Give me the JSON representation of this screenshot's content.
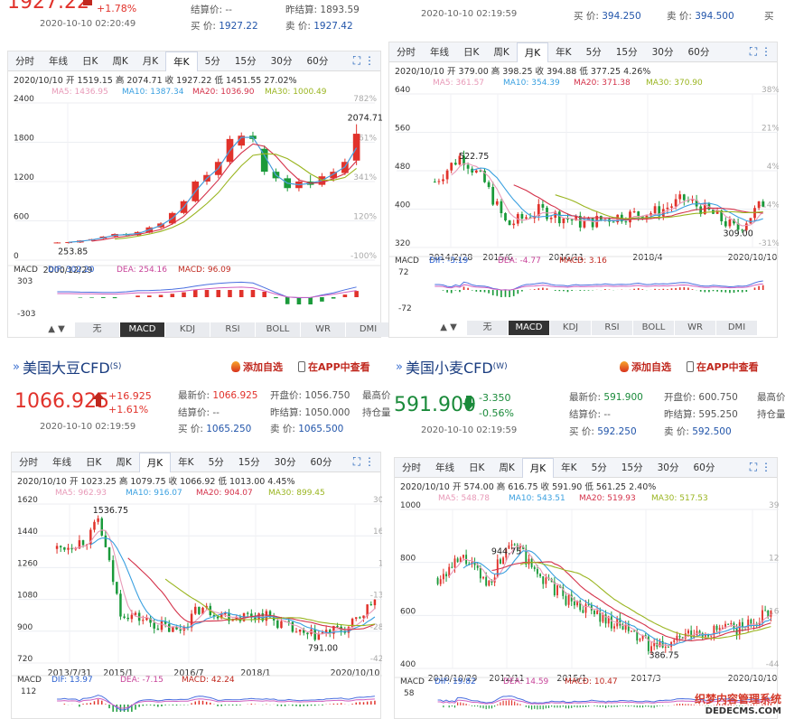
{
  "q1": {
    "price_partial": "1927.22",
    "change_pct": "+1.78%",
    "time": "2020-10-10 02:20:49",
    "settle_label": "结算价:",
    "settle_val": "--",
    "prev_settle_label": "昨结算:",
    "prev_settle_val": "1893.59",
    "buy_label": "买  价:",
    "buy_val": "1927.22",
    "sell_label": "卖  价:",
    "sell_val": "1927.42"
  },
  "q2": {
    "time": "2020-10-10 02:19:59",
    "buy_label": "买  价:",
    "buy_val": "394.250",
    "sell_label": "卖  价:",
    "sell_val": "394.500",
    "extra": "买"
  },
  "q3": {
    "title": "美国大豆CFD",
    "title_sub": "(S)",
    "add_fav": "添加自选",
    "app_view": "在APP中查看",
    "price": "1066.925",
    "change": "+16.925",
    "change_pct": "+1.61%",
    "time": "2020-10-10 02:19:59",
    "latest_label": "最新价:",
    "latest_val": "1066.925",
    "open_label": "开盘价:",
    "open_val": "1056.750",
    "high_label": "最高价",
    "settle_label": "结算价:",
    "settle_val": "--",
    "prev_settle_label": "昨结算:",
    "prev_settle_val": "1050.000",
    "hold_label": "持仓量",
    "buy_label": "买  价:",
    "buy_val": "1065.250",
    "sell_label": "卖  价:",
    "sell_val": "1065.500"
  },
  "q4": {
    "title": "美国小麦CFD",
    "title_sub": "(W)",
    "add_fav": "添加自选",
    "app_view": "在APP中查看",
    "price": "591.900",
    "change": "-3.350",
    "change_pct": "-0.56%",
    "time": "2020-10-10 02:19:59",
    "latest_label": "最新价:",
    "latest_val": "591.900",
    "open_label": "开盘价:",
    "open_val": "600.750",
    "high_label": "最高价",
    "settle_label": "结算价:",
    "settle_val": "--",
    "prev_settle_label": "昨结算:",
    "prev_settle_val": "595.250",
    "hold_label": "持仓量",
    "buy_label": "买  价:",
    "buy_val": "592.250",
    "sell_label": "卖  价:",
    "sell_val": "592.500"
  },
  "tabs": [
    "分时",
    "年线",
    "日K",
    "周K",
    "月K",
    "年K",
    "5分",
    "15分",
    "30分",
    "60分"
  ],
  "indicators": [
    "无",
    "MACD",
    "KDJ",
    "RSI",
    "BOLL",
    "WR",
    "DMI"
  ],
  "colors": {
    "up": "#e1322b",
    "down": "#1a9a3a",
    "ma5": "#e89ab8",
    "ma10": "#3aa0e0",
    "ma20": "#d4324a",
    "ma30": "#9ab520",
    "blue": "#2255aa"
  },
  "watermark": {
    "line1": "织梦内容管理系统",
    "line2": "DEDECMS.COM"
  },
  "chart_data": [
    {
      "id": "c1",
      "type": "candlestick",
      "active_tab": "年K",
      "info_date": "2020/10/10",
      "info": "开 1519.15  高 2074.71  收 1927.22  低 1451.55  27.02%",
      "ma": {
        "ma5": "MA5: 1436.95",
        "ma10": "MA10: 1387.34",
        "ma20": "MA20: 1036.90",
        "ma30": "MA30: 1000.49"
      },
      "ylim": [
        0,
        2400
      ],
      "yticks": [
        "2400",
        "1800",
        "1200",
        "600",
        "0"
      ],
      "pct_ticks": [
        "782%",
        "561%",
        "341%",
        "120%",
        "-100%"
      ],
      "xlabels": [
        "2000/12/29"
      ],
      "annotations": {
        "max": "2074.71",
        "min": "253.85"
      },
      "macd": {
        "label": "MACD",
        "dif": "DIF: 302.20",
        "dea": "DEA: 254.16",
        "macd": "MACD: 96.09",
        "ticks": [
          "303",
          "-303"
        ]
      },
      "candles": [
        [
          265,
          270,
          255,
          275
        ],
        [
          265,
          275,
          254,
          280
        ],
        [
          270,
          300,
          262,
          305
        ],
        [
          300,
          320,
          290,
          325
        ],
        [
          330,
          360,
          320,
          368
        ],
        [
          360,
          400,
          350,
          410
        ],
        [
          400,
          380,
          360,
          415
        ],
        [
          380,
          430,
          370,
          440
        ],
        [
          420,
          500,
          410,
          520
        ],
        [
          500,
          560,
          480,
          580
        ],
        [
          560,
          720,
          540,
          740
        ],
        [
          720,
          900,
          700,
          920
        ],
        [
          900,
          1200,
          880,
          1220
        ],
        [
          1200,
          1300,
          1150,
          1350
        ],
        [
          1300,
          1500,
          1250,
          1550
        ],
        [
          1500,
          1850,
          1450,
          1900
        ],
        [
          1750,
          1900,
          1700,
          1950
        ],
        [
          1900,
          1850,
          1800,
          1960
        ],
        [
          1700,
          1350,
          1300,
          1750
        ],
        [
          1350,
          1250,
          1200,
          1400
        ],
        [
          1250,
          1100,
          1050,
          1300
        ],
        [
          1100,
          1200,
          1050,
          1250
        ],
        [
          1200,
          1150,
          1100,
          1300
        ],
        [
          1150,
          1280,
          1120,
          1330
        ],
        [
          1250,
          1350,
          1200,
          1400
        ],
        [
          1330,
          1500,
          1300,
          1550
        ],
        [
          1520,
          1930,
          1450,
          2075
        ]
      ]
    },
    {
      "id": "c2",
      "type": "candlestick",
      "active_tab": "月K",
      "info_date": "2020/10/10",
      "info": "开 379.00  高 398.25  收 394.88  低 377.25  4.26%",
      "ma": {
        "ma5": "MA5: 361.57",
        "ma10": "MA10: 354.39",
        "ma20": "MA20: 371.38",
        "ma30": "MA30: 370.90"
      },
      "ylim": [
        290,
        640
      ],
      "yticks": [
        "640",
        "560",
        "480",
        "400",
        "320"
      ],
      "pct_ticks": [
        "38%",
        "21%",
        "4%",
        "-14%",
        "-31%"
      ],
      "xlabels": [
        "2014/2/28",
        "2015/6",
        "2016/11",
        "2018/4",
        "2020/10/10"
      ],
      "annotations": {
        "max": "522.75",
        "min": "309.00"
      },
      "macd": {
        "label": "MACD",
        "dif": "DIF: -3.19",
        "dea": "DEA: -4.77",
        "macd": "MACD: 3.16",
        "ticks": [
          "72",
          "-72"
        ]
      }
    },
    {
      "id": "c3",
      "type": "candlestick",
      "active_tab": "月K",
      "info_date": "2020/10/10",
      "info": "开 1023.25  高 1079.75  收 1066.92  低 1013.00  4.45%",
      "ma": {
        "ma5": "MA5: 962.93",
        "ma10": "MA10: 916.07",
        "ma20": "MA20: 904.07",
        "ma30": "MA30: 899.45"
      },
      "ylim": [
        700,
        1620
      ],
      "yticks": [
        "1620",
        "1440",
        "1260",
        "1080",
        "900",
        "720"
      ],
      "pct_ticks": [
        "30%",
        "16%",
        "1%",
        "-13%",
        "-28%",
        "-42%"
      ],
      "xlabels": [
        "2013/7/31",
        "2015/1",
        "2016/7",
        "2018/1",
        "2020/10/10"
      ],
      "annotations": {
        "max": "1536.75",
        "min": "791.00"
      },
      "macd": {
        "label": "MACD",
        "dif": "DIF: 13.97",
        "dea": "DEA: -7.15",
        "macd": "MACD: 42.24",
        "ticks": [
          "112"
        ]
      }
    },
    {
      "id": "c4",
      "type": "candlestick",
      "active_tab": "月K",
      "info_date": "2020/10/10",
      "info": "开 574.00  高 616.75  收 591.90  低 561.25  2.40%",
      "ma": {
        "ma5": "MA5: 548.78",
        "ma10": "MA10: 543.51",
        "ma20": "MA20: 519.93",
        "ma30": "MA30: 517.53"
      },
      "ylim": [
        350,
        1000
      ],
      "yticks": [
        "1000",
        "800",
        "600",
        "400"
      ],
      "pct_ticks": [
        "39%",
        "12%",
        "-16%",
        "-44%"
      ],
      "xlabels": [
        "2010/10/29",
        "2012/11",
        "2015/1",
        "2017/3",
        "2020/10/10"
      ],
      "annotations": {
        "max": "944.75",
        "min": "386.75"
      },
      "macd": {
        "label": "MACD",
        "dif": "DIF: 19.82",
        "dea": "DEA: 14.59",
        "macd": "MACD: 10.47",
        "ticks": [
          "58"
        ]
      }
    }
  ]
}
